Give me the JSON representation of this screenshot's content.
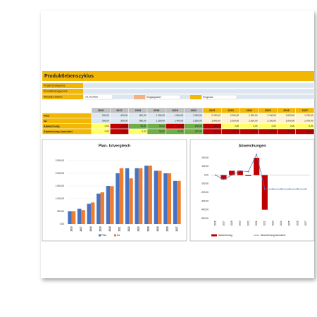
{
  "header": {
    "title": "Produktlebenszyklus"
  },
  "info": [
    {
      "label": "Projekt (Kategorie):"
    },
    {
      "label": "Produktmanagement:"
    },
    {
      "label": "Aktuelles Datum:",
      "value": "13.10.2022"
    }
  ],
  "legend": [
    "Eingangswert",
    "Prognose"
  ],
  "table": {
    "years": [
      "2016",
      "2017",
      "2018",
      "2019",
      "2020",
      "2021",
      "2022",
      "2023",
      "2024",
      "2025",
      "2026",
      "2027"
    ],
    "rows": [
      {
        "label": "Plan",
        "cells": [
          "500,00",
          "600,00",
          "800,00",
          "1.200,00",
          "1.500,00",
          "2.000,00",
          "2.200,00",
          "2.200,00",
          "2.300,00",
          "2.100,00",
          "2.000,00",
          "1.700,00"
        ]
      },
      {
        "label": "Ist",
        "cells": [
          "500,00",
          "550,00",
          "850,00",
          "1.250,00",
          "1.490,00",
          "2.200,00",
          "1.800,00",
          "2.200,00",
          "2.300,00",
          "2.100,00",
          "2.000,00",
          "1.700,00"
        ]
      },
      {
        "label": "Abweichung",
        "cells": [
          "0,00",
          "-50,00",
          "50,00",
          "50,00",
          "-10,00",
          "200,00",
          "-400,00",
          "0,00",
          "0,00",
          "0,00",
          "0,00",
          "0,00"
        ]
      },
      {
        "label": "Abweichung kumuliert",
        "cells": [
          "0,00",
          "-50,00",
          "0,00",
          "50,00",
          "40,00",
          "240,00",
          "-160,00",
          "-160,00",
          "-160,00",
          "-160,00",
          "-160,00",
          "-160,00"
        ]
      }
    ]
  },
  "chart_data": [
    {
      "type": "bar",
      "title": "Plan- Istvergleich",
      "categories": [
        "2016",
        "2017",
        "2018",
        "2019",
        "2020",
        "2021",
        "2022",
        "2023",
        "2024",
        "2025",
        "2026",
        "2027"
      ],
      "series": [
        {
          "name": "Plan",
          "color": "#4472c4",
          "values": [
            500,
            600,
            800,
            1200,
            1500,
            2000,
            2200,
            2200,
            2300,
            2100,
            2000,
            1700
          ]
        },
        {
          "name": "Ist",
          "color": "#ed7d31",
          "values": [
            500,
            550,
            850,
            1250,
            1490,
            2200,
            1800,
            2200,
            2300,
            2100,
            2000,
            1700
          ]
        }
      ],
      "ylim": [
        0,
        2500
      ],
      "yticks": [
        {
          "value": 0,
          "label": "0,00"
        },
        {
          "value": 500,
          "label": "500,00"
        },
        {
          "value": 1000,
          "label": "1.000,00"
        },
        {
          "value": 1500,
          "label": "1.500,00"
        },
        {
          "value": 2000,
          "label": "2.000,00"
        },
        {
          "value": 2500,
          "label": "2.500,00"
        }
      ]
    },
    {
      "type": "combo",
      "title": "Abweichungen",
      "categories": [
        "2016",
        "2017",
        "2018",
        "2019",
        "2020",
        "2021",
        "2022",
        "2023",
        "2024",
        "2025",
        "2026",
        "2027"
      ],
      "series": [
        {
          "name": "Abweichung",
          "color": "#c00000",
          "kind": "bar",
          "values": [
            0,
            -50,
            50,
            50,
            -10,
            200,
            -400,
            0,
            0,
            0,
            0,
            0
          ]
        },
        {
          "name": "Abweichung kumuliert",
          "color": "#4472c4",
          "kind": "line",
          "values": [
            0,
            -50,
            0,
            50,
            40,
            240,
            -160,
            -160,
            -160,
            -160,
            -160,
            -160
          ]
        }
      ],
      "ylim": [
        -500,
        200
      ],
      "yticks": [
        {
          "value": 200,
          "label": "200,00"
        },
        {
          "value": 100,
          "label": "100,00"
        },
        {
          "value": 0,
          "label": "0,00"
        },
        {
          "value": -100,
          "label": "-100,00"
        },
        {
          "value": -200,
          "label": "-200,00"
        },
        {
          "value": -300,
          "label": "-300,00"
        },
        {
          "value": -400,
          "label": "-400,00"
        },
        {
          "value": -500,
          "label": "-500,00"
        }
      ]
    }
  ]
}
